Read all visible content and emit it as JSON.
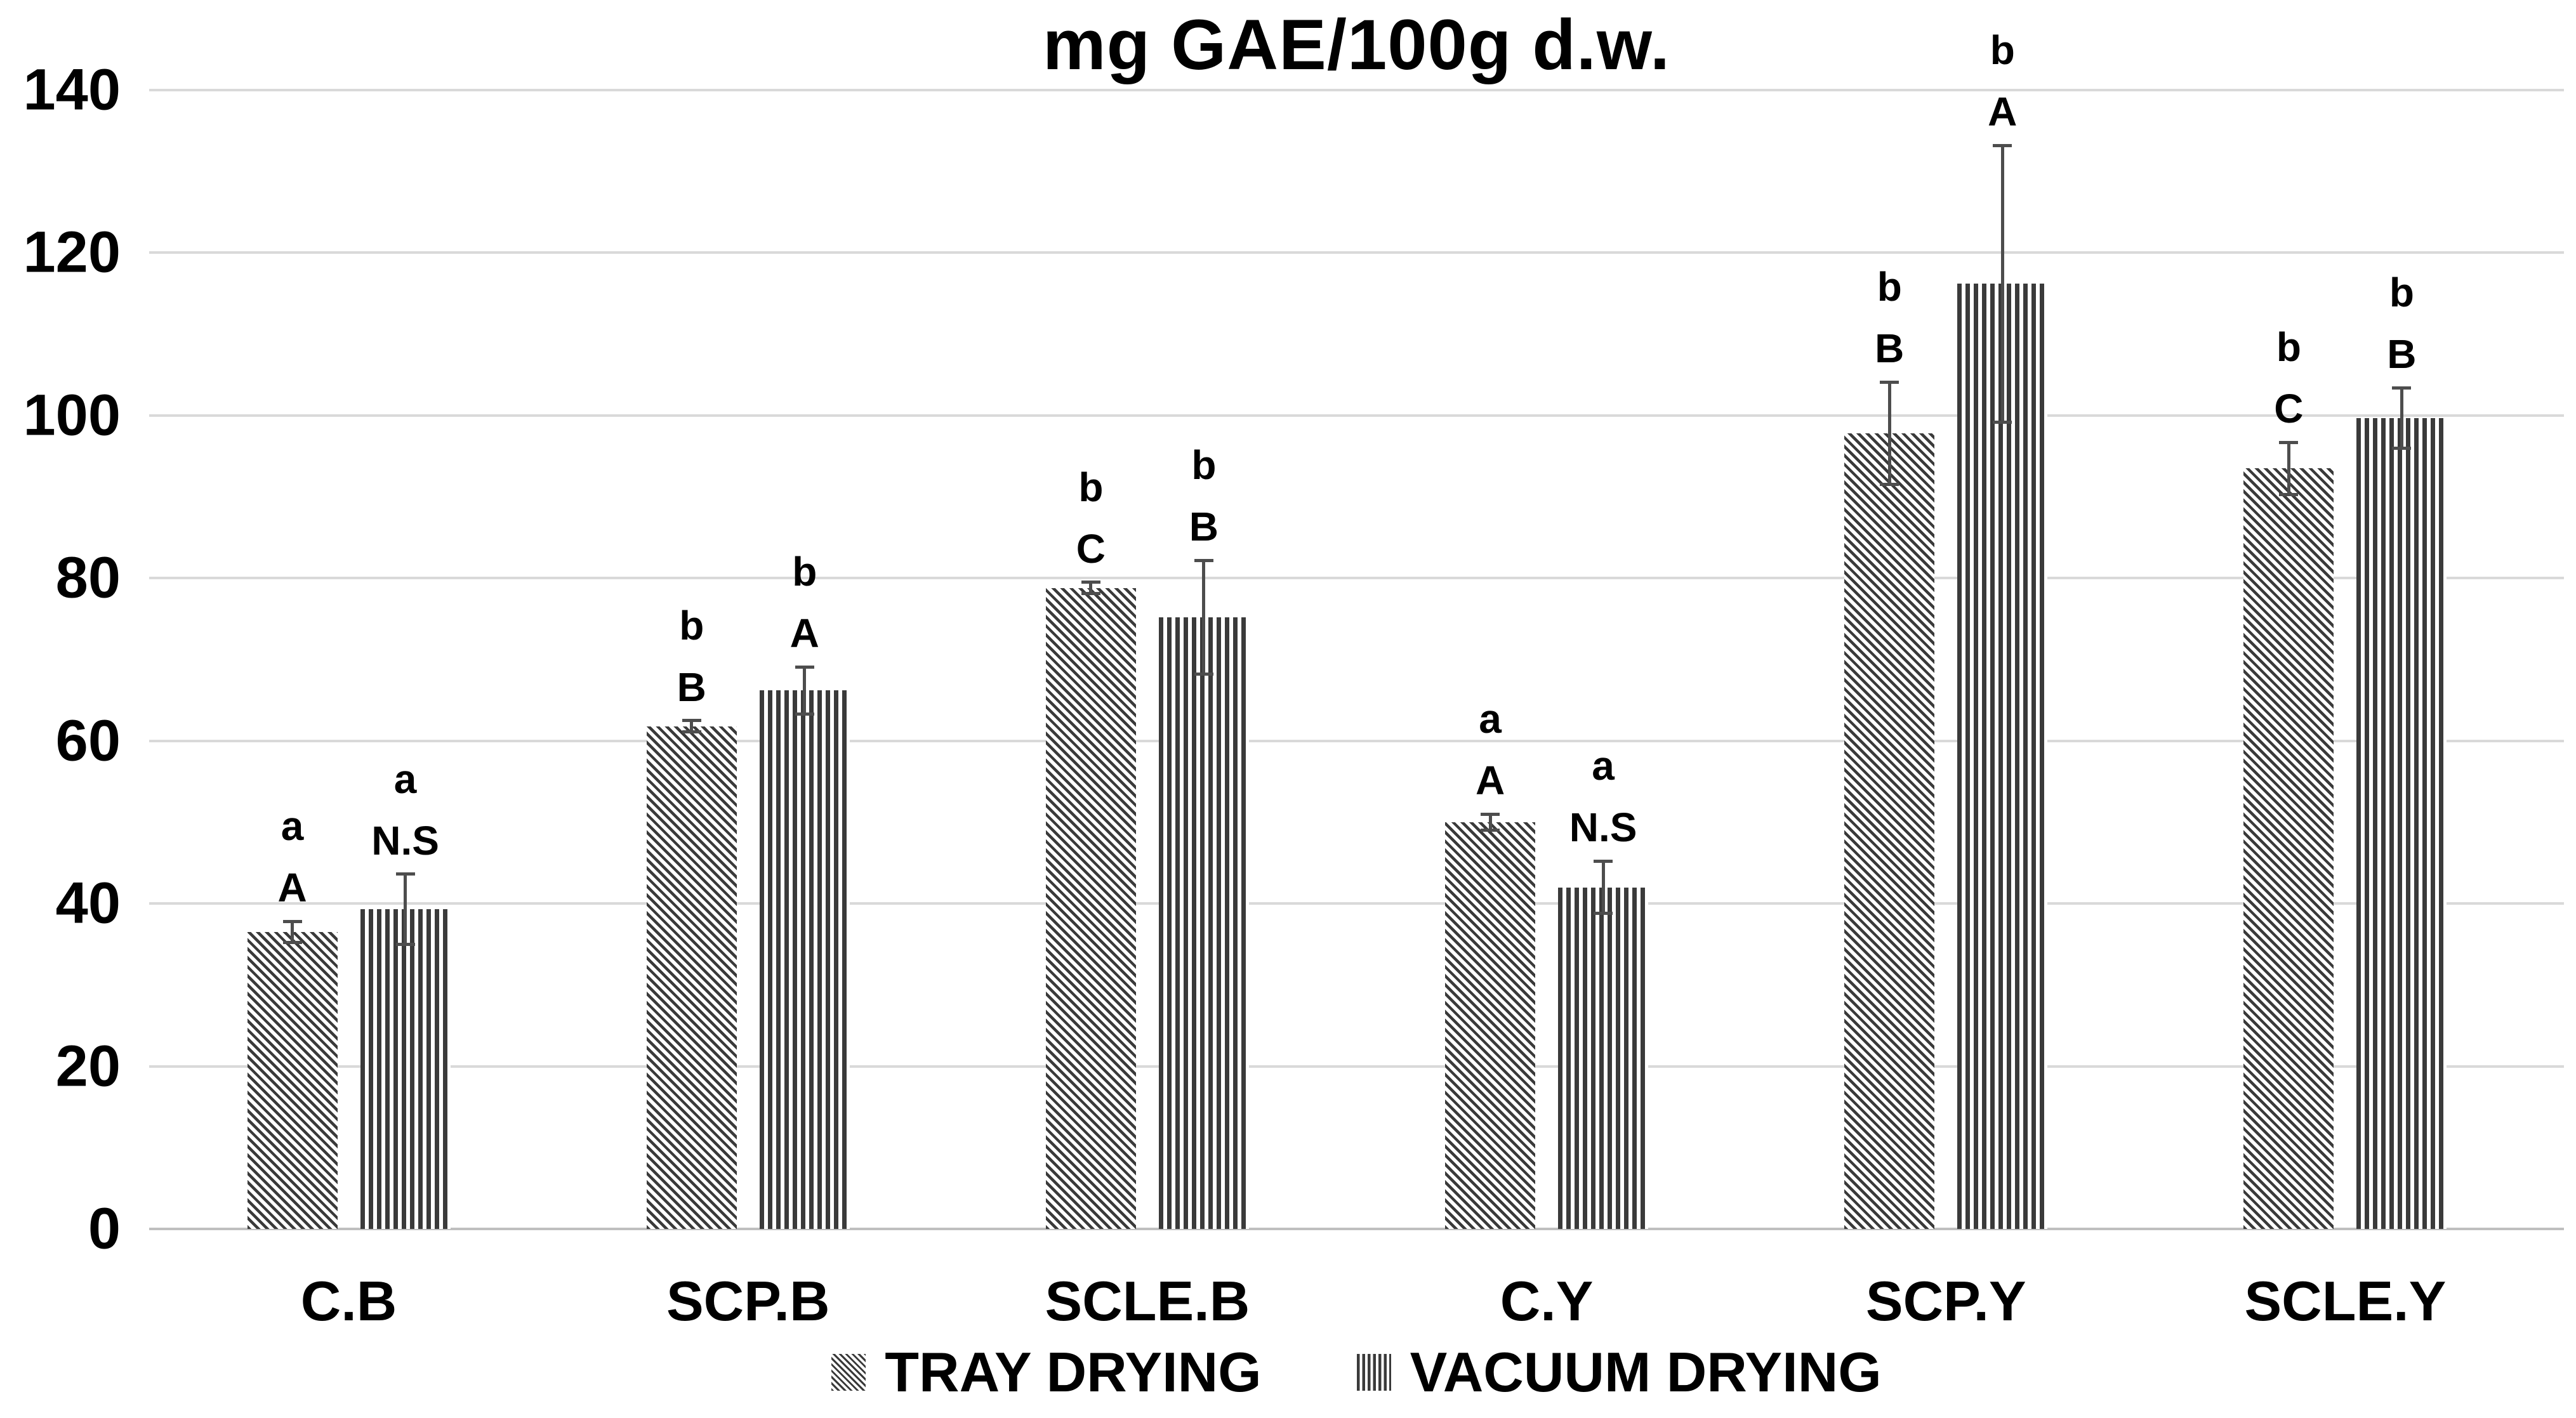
{
  "chart_data": {
    "type": "bar",
    "title": "mg GAE/100g d.w.",
    "categories": [
      "C.B",
      "SCP.B",
      "SCLE.B",
      "C.Y",
      "SCP.Y",
      "SCLE.Y"
    ],
    "series": [
      {
        "name": "TRAY DRYING",
        "pattern": "diagonal-hatch",
        "values": [
          36.5,
          61.8,
          78.8,
          50.0,
          97.8,
          93.5
        ],
        "errors": [
          1.3,
          0.7,
          0.7,
          1.0,
          6.3,
          3.2
        ],
        "letters": [
          [
            "a",
            "A"
          ],
          [
            "b",
            "B"
          ],
          [
            "b",
            "C"
          ],
          [
            "a",
            "A"
          ],
          [
            "b",
            "B"
          ],
          [
            "b",
            "C"
          ]
        ]
      },
      {
        "name": "VACUUM DRYING",
        "pattern": "vertical-stripes",
        "values": [
          39.3,
          66.2,
          75.2,
          42.0,
          116.2,
          99.7
        ],
        "errors": [
          4.3,
          2.9,
          7.0,
          3.2,
          17.0,
          3.7
        ],
        "letters": [
          [
            "a",
            "N.S"
          ],
          [
            "b",
            "A"
          ],
          [
            "b",
            "B"
          ],
          [
            "a",
            "N.S"
          ],
          [
            "b",
            "A"
          ],
          [
            "b",
            "B"
          ]
        ]
      }
    ],
    "ylabel": "",
    "xlabel": "",
    "ylim": [
      0,
      140
    ],
    "ytick_step": 20,
    "yticks": [
      "0",
      "20",
      "40",
      "60",
      "80",
      "100",
      "120",
      "140"
    ],
    "grid": true,
    "legend_position": "bottom",
    "error_bars": true
  },
  "colors": {
    "background": "#ffffff",
    "bar_ink": "#3a3a3a",
    "gridline": "#d9d9d9",
    "axis_line": "#bfbfbf",
    "error_bar": "#4d4d4d",
    "text": "#000000"
  }
}
